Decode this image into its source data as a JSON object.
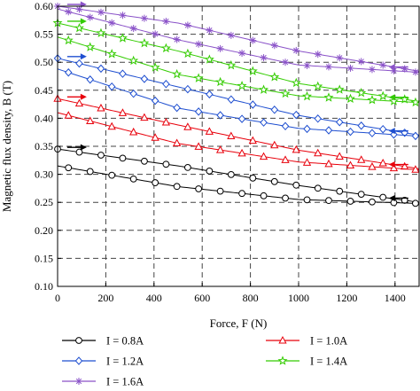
{
  "chart_data": {
    "type": "line",
    "xlabel": "Force, F (N)",
    "ylabel": "Magnetic flux density, B (T)",
    "xlim": [
      0,
      1500
    ],
    "ylim": [
      0.1,
      0.6
    ],
    "x_ticks": [
      0,
      200,
      400,
      600,
      800,
      1000,
      1200,
      1400
    ],
    "y_ticks": [
      0.1,
      0.15,
      0.2,
      0.25,
      0.3,
      0.35,
      0.4,
      0.45,
      0.5,
      0.55,
      0.6
    ],
    "x_tick_labels": [
      "0",
      "200",
      "400",
      "600",
      "800",
      "1000",
      "1200",
      "1400"
    ],
    "y_tick_labels": [
      "0.10",
      "0.15",
      "0.20",
      "0.25",
      "0.30",
      "0.35",
      "0.40",
      "0.45",
      "0.50",
      "0.55",
      "0.60"
    ],
    "grid": "dashed",
    "legend_position": "bottom",
    "series": [
      {
        "name": "I = 0.8A",
        "color": "#000000",
        "marker": "circle",
        "loading": {
          "x": [
            0,
            500,
            1000,
            1500
          ],
          "y": [
            0.345,
            0.315,
            0.28,
            0.25
          ]
        },
        "unloading": {
          "x": [
            1500,
            1000,
            500,
            0
          ],
          "y": [
            0.248,
            0.255,
            0.278,
            0.315
          ]
        }
      },
      {
        "name": "I = 1.0A",
        "color": "#e8000b",
        "marker": "triangle",
        "loading": {
          "x": [
            0,
            500,
            1000,
            1500
          ],
          "y": [
            0.435,
            0.388,
            0.343,
            0.31
          ]
        },
        "unloading": {
          "x": [
            1500,
            1000,
            500,
            0
          ],
          "y": [
            0.308,
            0.322,
            0.355,
            0.41
          ]
        }
      },
      {
        "name": "I = 1.2A",
        "color": "#1f4fd0",
        "marker": "diamond",
        "loading": {
          "x": [
            0,
            500,
            1000,
            1500
          ],
          "y": [
            0.507,
            0.456,
            0.405,
            0.37
          ]
        },
        "unloading": {
          "x": [
            1500,
            1000,
            500,
            0
          ],
          "y": [
            0.368,
            0.382,
            0.418,
            0.488
          ]
        }
      },
      {
        "name": "I = 1.4A",
        "color": "#33cc00",
        "marker": "star",
        "loading": {
          "x": [
            0,
            500,
            1000,
            1500
          ],
          "y": [
            0.57,
            0.52,
            0.462,
            0.43
          ]
        },
        "unloading": {
          "x": [
            1500,
            1000,
            500,
            0
          ],
          "y": [
            0.428,
            0.44,
            0.478,
            0.545
          ]
        }
      },
      {
        "name": "I = 1.6A",
        "color": "#8a52c8",
        "marker": "asterisk",
        "loading": {
          "x": [
            0,
            500,
            1000,
            1500
          ],
          "y": [
            0.6,
            0.57,
            0.52,
            0.484
          ]
        },
        "unloading": {
          "x": [
            1500,
            1000,
            500,
            0
          ],
          "y": [
            0.482,
            0.495,
            0.54,
            0.595
          ]
        }
      }
    ]
  }
}
